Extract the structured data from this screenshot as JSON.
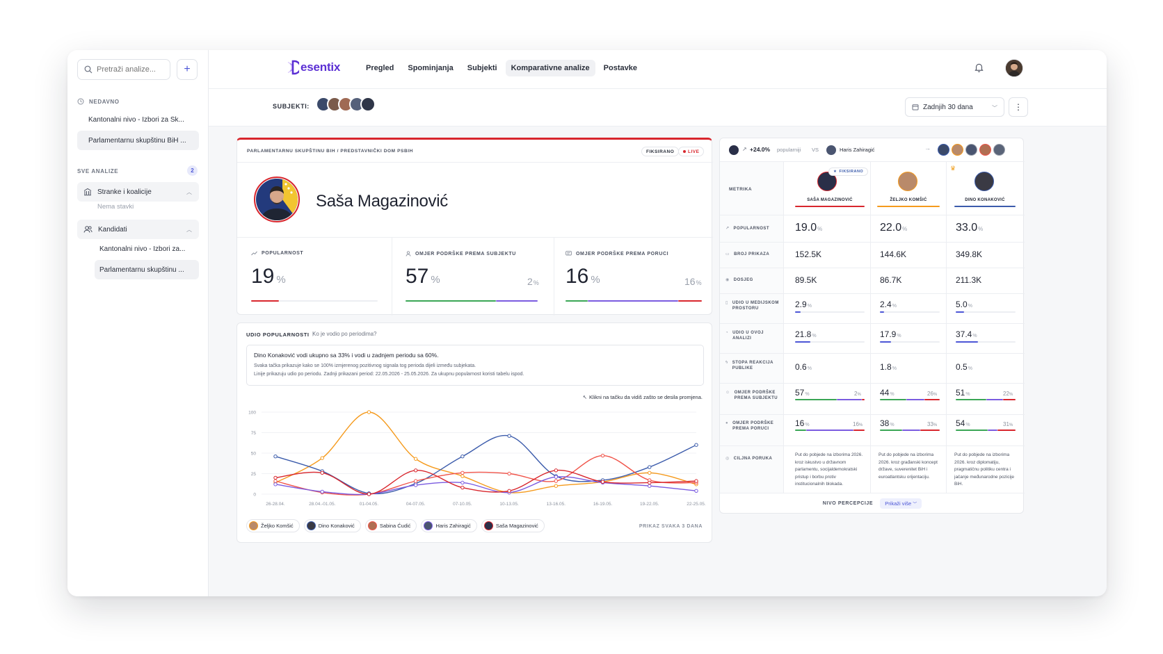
{
  "sidebar": {
    "search_placeholder": "Pretraži analize...",
    "recent_label": "NEDAVNO",
    "recent": [
      {
        "label": "Kantonalni nivo - Izbori za Sk..."
      },
      {
        "label": "Parlamentarnu skupštinu BiH ..."
      }
    ],
    "all_label": "SVE ANALIZE",
    "all_count": "2",
    "groups": [
      {
        "label": "Stranke i koalicije",
        "empty": "Nema stavki"
      },
      {
        "label": "Kandidati"
      }
    ],
    "candidates": [
      {
        "label": "Kantonalni nivo - Izbori za..."
      },
      {
        "label": "Parlamentarnu skupštinu ..."
      }
    ]
  },
  "header": {
    "brand": "esentix",
    "tabs": [
      "Pregled",
      "Spominjanja",
      "Subjekti",
      "Komparativne analize",
      "Postavke"
    ],
    "active_tab": "Komparativne analize"
  },
  "subbar": {
    "subjects_label": "SUBJEKTI:",
    "date_range": "Zadnjih 30 dana"
  },
  "colors": {
    "accent": "#4b55d6",
    "brand": "#5b2fd4",
    "red": "#d8262d",
    "orange": "#f59a1c",
    "blue": "#3b5bab",
    "purple": "#7a5be0",
    "green": "#3aa655"
  },
  "profile": {
    "breadcrumb": "PARLAMENTARNU SKUPŠTINU BIH / PREDSTAVNIČKI DOM PSBIH",
    "fixed_badge": "FIKSIRANO",
    "live_badge": "LIVE",
    "name": "Saša Magazinović",
    "kpis": [
      {
        "title": "POPULARNOST",
        "value": "19",
        "unit": "%",
        "icon": "trend-icon"
      },
      {
        "title": "OMJER PODRŠKE PREMA SUBJEKTU",
        "value": "57",
        "unit": "%",
        "sub": "2",
        "icon": "person-icon"
      },
      {
        "title": "OMJER PODRŠKE PREMA PORUCI",
        "value": "16",
        "unit": "%",
        "sub": "16",
        "icon": "message-icon"
      }
    ]
  },
  "popularity": {
    "title": "UDIO POPULARNOSTI",
    "sep": "/",
    "subtitle": "Ko je vodio po periodima?",
    "note_heading": "Dino Konaković vodi ukupno sa 33% i vodi u zadnjem periodu sa 60%.",
    "note_line1": "Svaka tačka prikazuje kako se 100% izmjerenog pozitivnog signala tog perioda dijeli između subjekata.",
    "note_line2": "Linije prikazuju udio po periodu. Zadnji prikazani period: 22.05.2026 - 25.05.2026. Za ukupnu popularnost koristi tabelu ispod.",
    "hint": "Klikni na tačku da vidiš zašto se desila promjena.",
    "interval": "PRIKAZ SVAKA 3 DANA",
    "legend": [
      "Željko Komšić",
      "Dino Konaković",
      "Sabina Ćudić",
      "Haris Zahiragić",
      "Saša Magazinović"
    ]
  },
  "chart_data": {
    "type": "line",
    "categories": [
      "26-28.04.",
      "28.04.-01.05.",
      "01-04.05.",
      "04-07.05.",
      "07-10.05.",
      "10-13.05.",
      "13-16.05.",
      "16-19.05.",
      "19-22.05.",
      "22-25.05."
    ],
    "ylim": [
      0,
      100
    ],
    "yticks": [
      0,
      25,
      50,
      75,
      100
    ],
    "series": [
      {
        "name": "Željko Komšić",
        "color": "#f59a1c",
        "values": [
          14,
          44,
          100,
          43,
          22,
          2,
          10,
          15,
          26,
          12
        ]
      },
      {
        "name": "Dino Konaković",
        "color": "#3b5bab",
        "values": [
          46,
          28,
          1,
          13,
          46,
          71,
          22,
          17,
          33,
          60
        ]
      },
      {
        "name": "Sabina Ćudić",
        "color": "#f0544a",
        "values": [
          16,
          2,
          0,
          16,
          26,
          25,
          16,
          47,
          17,
          14
        ]
      },
      {
        "name": "Haris Zahiragić",
        "color": "#7a5be0",
        "values": [
          12,
          3,
          0,
          11,
          14,
          2,
          21,
          14,
          10,
          4
        ]
      },
      {
        "name": "Saša Magazinović",
        "color": "#d8262d",
        "values": [
          20,
          26,
          0,
          29,
          8,
          4,
          29,
          15,
          14,
          16
        ]
      }
    ]
  },
  "comparison": {
    "summary_delta": "+24.0%",
    "summary_word": "popularniji",
    "vs": "VS",
    "opponent": "Haris Zahiragić",
    "metric_header": "METRIKA",
    "fixed_badge": "FIKSIRANO",
    "columns": [
      "SAŠA MAGAZINOVIĆ",
      "ŽELJKO KOMŠIĆ",
      "DINO KONAKOVIĆ"
    ],
    "rows": {
      "popularnost": {
        "label": "POPULARNOST",
        "values": [
          "19.0",
          "22.0",
          "33.0"
        ]
      },
      "broj": {
        "label": "BROJ PRIKAZA",
        "values": [
          "152.5K",
          "144.6K",
          "349.8K"
        ]
      },
      "dosjeg": {
        "label": "DOSJEG",
        "values": [
          "89.5K",
          "86.7K",
          "211.3K"
        ]
      },
      "udio_med": {
        "label1": "UDIO U MEDIJSKOM",
        "label2": "PROSTORU",
        "values": [
          "2.9",
          "2.4",
          "5.0"
        ]
      },
      "udio_ana": {
        "label1": "UDIO U OVOJ",
        "label2": "ANALIZI",
        "values": [
          "21.8",
          "17.9",
          "37.4"
        ]
      },
      "stopa": {
        "label1": "STOPA REAKCIJA",
        "label2": "PUBLIKE",
        "values": [
          "0.6",
          "1.8",
          "0.5"
        ]
      },
      "omjer_sub": {
        "label1": "OMJER PODRŠKE",
        "label2": "PREMA SUBJEKTU",
        "values": [
          "57",
          "44",
          "51"
        ],
        "right": [
          "2",
          "26",
          "22"
        ]
      },
      "omjer_por": {
        "label1": "OMJER PODRŠKE",
        "label2": "PREMA PORUCI",
        "values": [
          "16",
          "38",
          "54"
        ],
        "right": [
          "16",
          "33",
          "31"
        ]
      },
      "ciljna": {
        "label": "CILJNA PORUKA",
        "texts": [
          "Put do pobjede na izborima 2026. kroz iskustvo u državnom parlamentu, socijaldemokratski pristup i borbu protiv institucionalnih blokada.",
          "Put do pobjede na izborima 2026. kroz građanski koncept države, suverenitet BiH i euroatlantsku orijentaciju.",
          "Put do pobjede na izborima 2026. kroz diplomatiju, pragmatičnu politiku centra i jačanje međunarodne pozicije BiH."
        ]
      }
    },
    "perception_label": "NIVO PERCEPCIJE",
    "show_more": "Prikaži više"
  }
}
